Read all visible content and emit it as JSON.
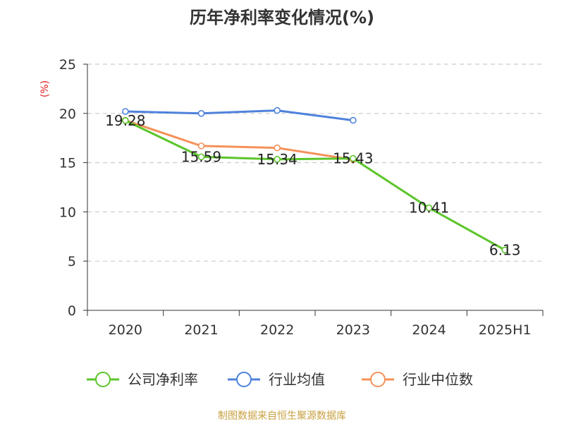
{
  "chart_data": {
    "type": "line",
    "title": "历年净利率变化情况(%)",
    "ylabel": "(%)",
    "categories": [
      "2020",
      "2021",
      "2022",
      "2023",
      "2024",
      "2025H1"
    ],
    "ylim": [
      0,
      25
    ],
    "yticks": [
      "0",
      "5",
      "10",
      "15",
      "20",
      "25"
    ],
    "grid": true,
    "legend_position": "bottom",
    "series": [
      {
        "name": "公司净利率",
        "color": "#5cc52b",
        "values": [
          19.28,
          15.59,
          15.34,
          15.43,
          10.41,
          6.13
        ],
        "labels": [
          "19.28",
          "15.59",
          "15.34",
          "15.43",
          "10.41",
          "6.13"
        ]
      },
      {
        "name": "行业均值",
        "color": "#4f82dc",
        "values": [
          20.2,
          20.0,
          20.3,
          19.3,
          null,
          null
        ]
      },
      {
        "name": "行业中位数",
        "color": "#f5915a",
        "values": [
          19.3,
          16.7,
          16.5,
          15.3,
          null,
          null
        ]
      }
    ]
  },
  "footer": {
    "source": "制图数据来自恒生聚源数据库"
  }
}
